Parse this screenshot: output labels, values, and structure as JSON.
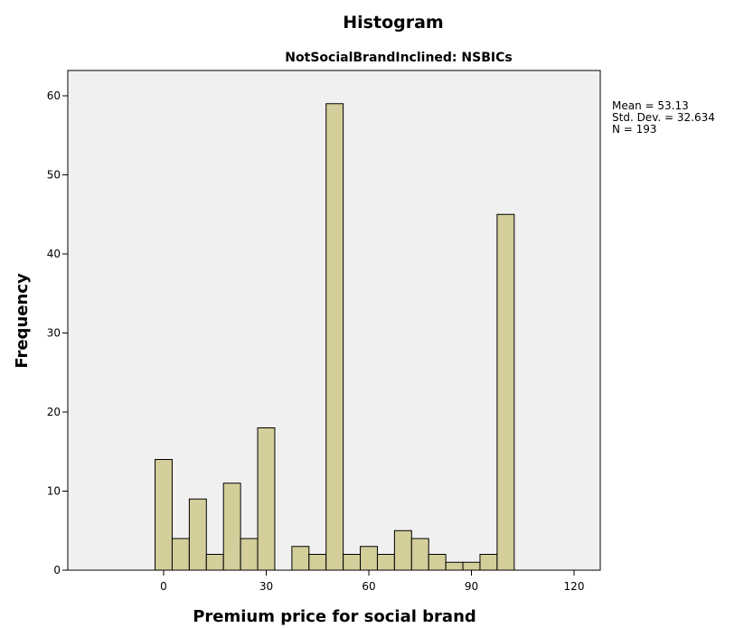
{
  "chart_data": {
    "type": "bar",
    "title": "Histogram",
    "subtitle": "NotSocialBrandInclined: NSBICs",
    "xlabel": "Premium price for social brand",
    "ylabel": "Frequency",
    "xlim": [
      -20,
      125
    ],
    "ylim": [
      0,
      63
    ],
    "x_ticks": [
      0,
      30,
      60,
      90,
      120
    ],
    "y_ticks": [
      0,
      10,
      20,
      30,
      40,
      50,
      60
    ],
    "bin_width": 5,
    "bins": [
      {
        "start": -2.5,
        "end": 2.5,
        "value": 14
      },
      {
        "start": 2.5,
        "end": 7.5,
        "value": 4
      },
      {
        "start": 7.5,
        "end": 12.5,
        "value": 9
      },
      {
        "start": 12.5,
        "end": 17.5,
        "value": 2
      },
      {
        "start": 17.5,
        "end": 22.5,
        "value": 11
      },
      {
        "start": 22.5,
        "end": 27.5,
        "value": 4
      },
      {
        "start": 27.5,
        "end": 32.5,
        "value": 18
      },
      {
        "start": 37.5,
        "end": 42.5,
        "value": 3
      },
      {
        "start": 42.5,
        "end": 47.5,
        "value": 2
      },
      {
        "start": 47.5,
        "end": 52.5,
        "value": 59
      },
      {
        "start": 52.5,
        "end": 57.5,
        "value": 2
      },
      {
        "start": 57.5,
        "end": 62.5,
        "value": 3
      },
      {
        "start": 62.5,
        "end": 67.5,
        "value": 2
      },
      {
        "start": 67.5,
        "end": 72.5,
        "value": 5
      },
      {
        "start": 72.5,
        "end": 77.5,
        "value": 4
      },
      {
        "start": 77.5,
        "end": 82.5,
        "value": 2
      },
      {
        "start": 82.5,
        "end": 87.5,
        "value": 1
      },
      {
        "start": 87.5,
        "end": 92.5,
        "value": 1
      },
      {
        "start": 92.5,
        "end": 97.5,
        "value": 2
      },
      {
        "start": 97.5,
        "end": 102.5,
        "value": 45
      }
    ],
    "stats": [
      "Mean = 53.13",
      "Std. Dev. = 32.634",
      "N = 193"
    ],
    "grid": false,
    "colors": {
      "bar_fill": "#d3ce9a",
      "bar_stroke": "#000000",
      "plot_bg": "#f0f0f0"
    }
  }
}
